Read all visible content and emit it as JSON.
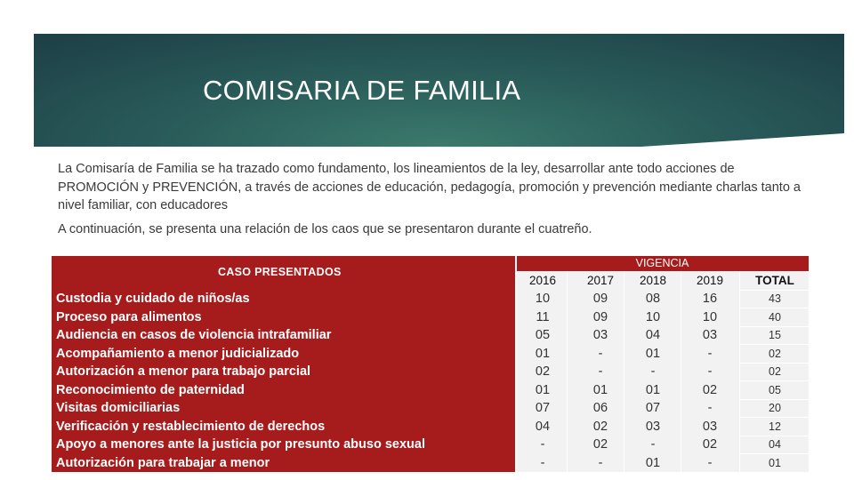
{
  "slide": {
    "title": "COMISARIA DE FAMILIA",
    "paragraph1": "La Comisaría de Familia se ha trazado como fundamento, los lineamientos de la ley, desarrollar ante todo acciones de PROMOCIÓN y PREVENCIÓN, a través de acciones de educación, pedagogía, promoción y prevención mediante charlas tanto a nivel familiar, con educadores",
    "paragraph2": "A continuación, se presenta una relación de los caos que se presentaron durante el cuatreño."
  },
  "table": {
    "case_header": "CASO PRESENTADOS",
    "vigencia_label": "VIGENCIA",
    "headers": {
      "y2016": "2016",
      "y2017": "2017",
      "y2018": "2018",
      "y2019": "2019",
      "total": "TOTAL"
    },
    "cases": [
      "Custodia y cuidado de niños/as",
      "Proceso para alimentos",
      "Audiencia en casos de violencia intrafamiliar",
      "Acompañamiento a menor judicializado",
      "Autorización a menor para trabajo parcial",
      "Reconocimiento de paternidad",
      "Visitas domiciliarias",
      "Verificación y restablecimiento de derechos",
      "Apoyo a menores ante la justicia por presunto abuso sexual",
      "Autorización para trabajar a menor"
    ],
    "y2016": [
      "10",
      "11",
      "05",
      "01",
      "02",
      "01",
      "07",
      "04",
      "-",
      "-"
    ],
    "y2017": [
      "09",
      "09",
      "03",
      "-",
      "-",
      "01",
      "06",
      "02",
      "02",
      "-"
    ],
    "y2018": [
      "08",
      "10",
      "04",
      "01",
      "-",
      "01",
      "07",
      "03",
      "-",
      "01"
    ],
    "y2019": [
      "16",
      "10",
      "03",
      "-",
      "-",
      "02",
      "-",
      "03",
      "02",
      "-"
    ],
    "total": [
      "43",
      "40",
      "15",
      "02",
      "02",
      "05",
      "20",
      "12",
      "04",
      "01"
    ]
  },
  "colors": {
    "accent_red": "#a61c1c",
    "banner_dark": "#1c3d45",
    "banner_light": "#3b7a6c"
  }
}
